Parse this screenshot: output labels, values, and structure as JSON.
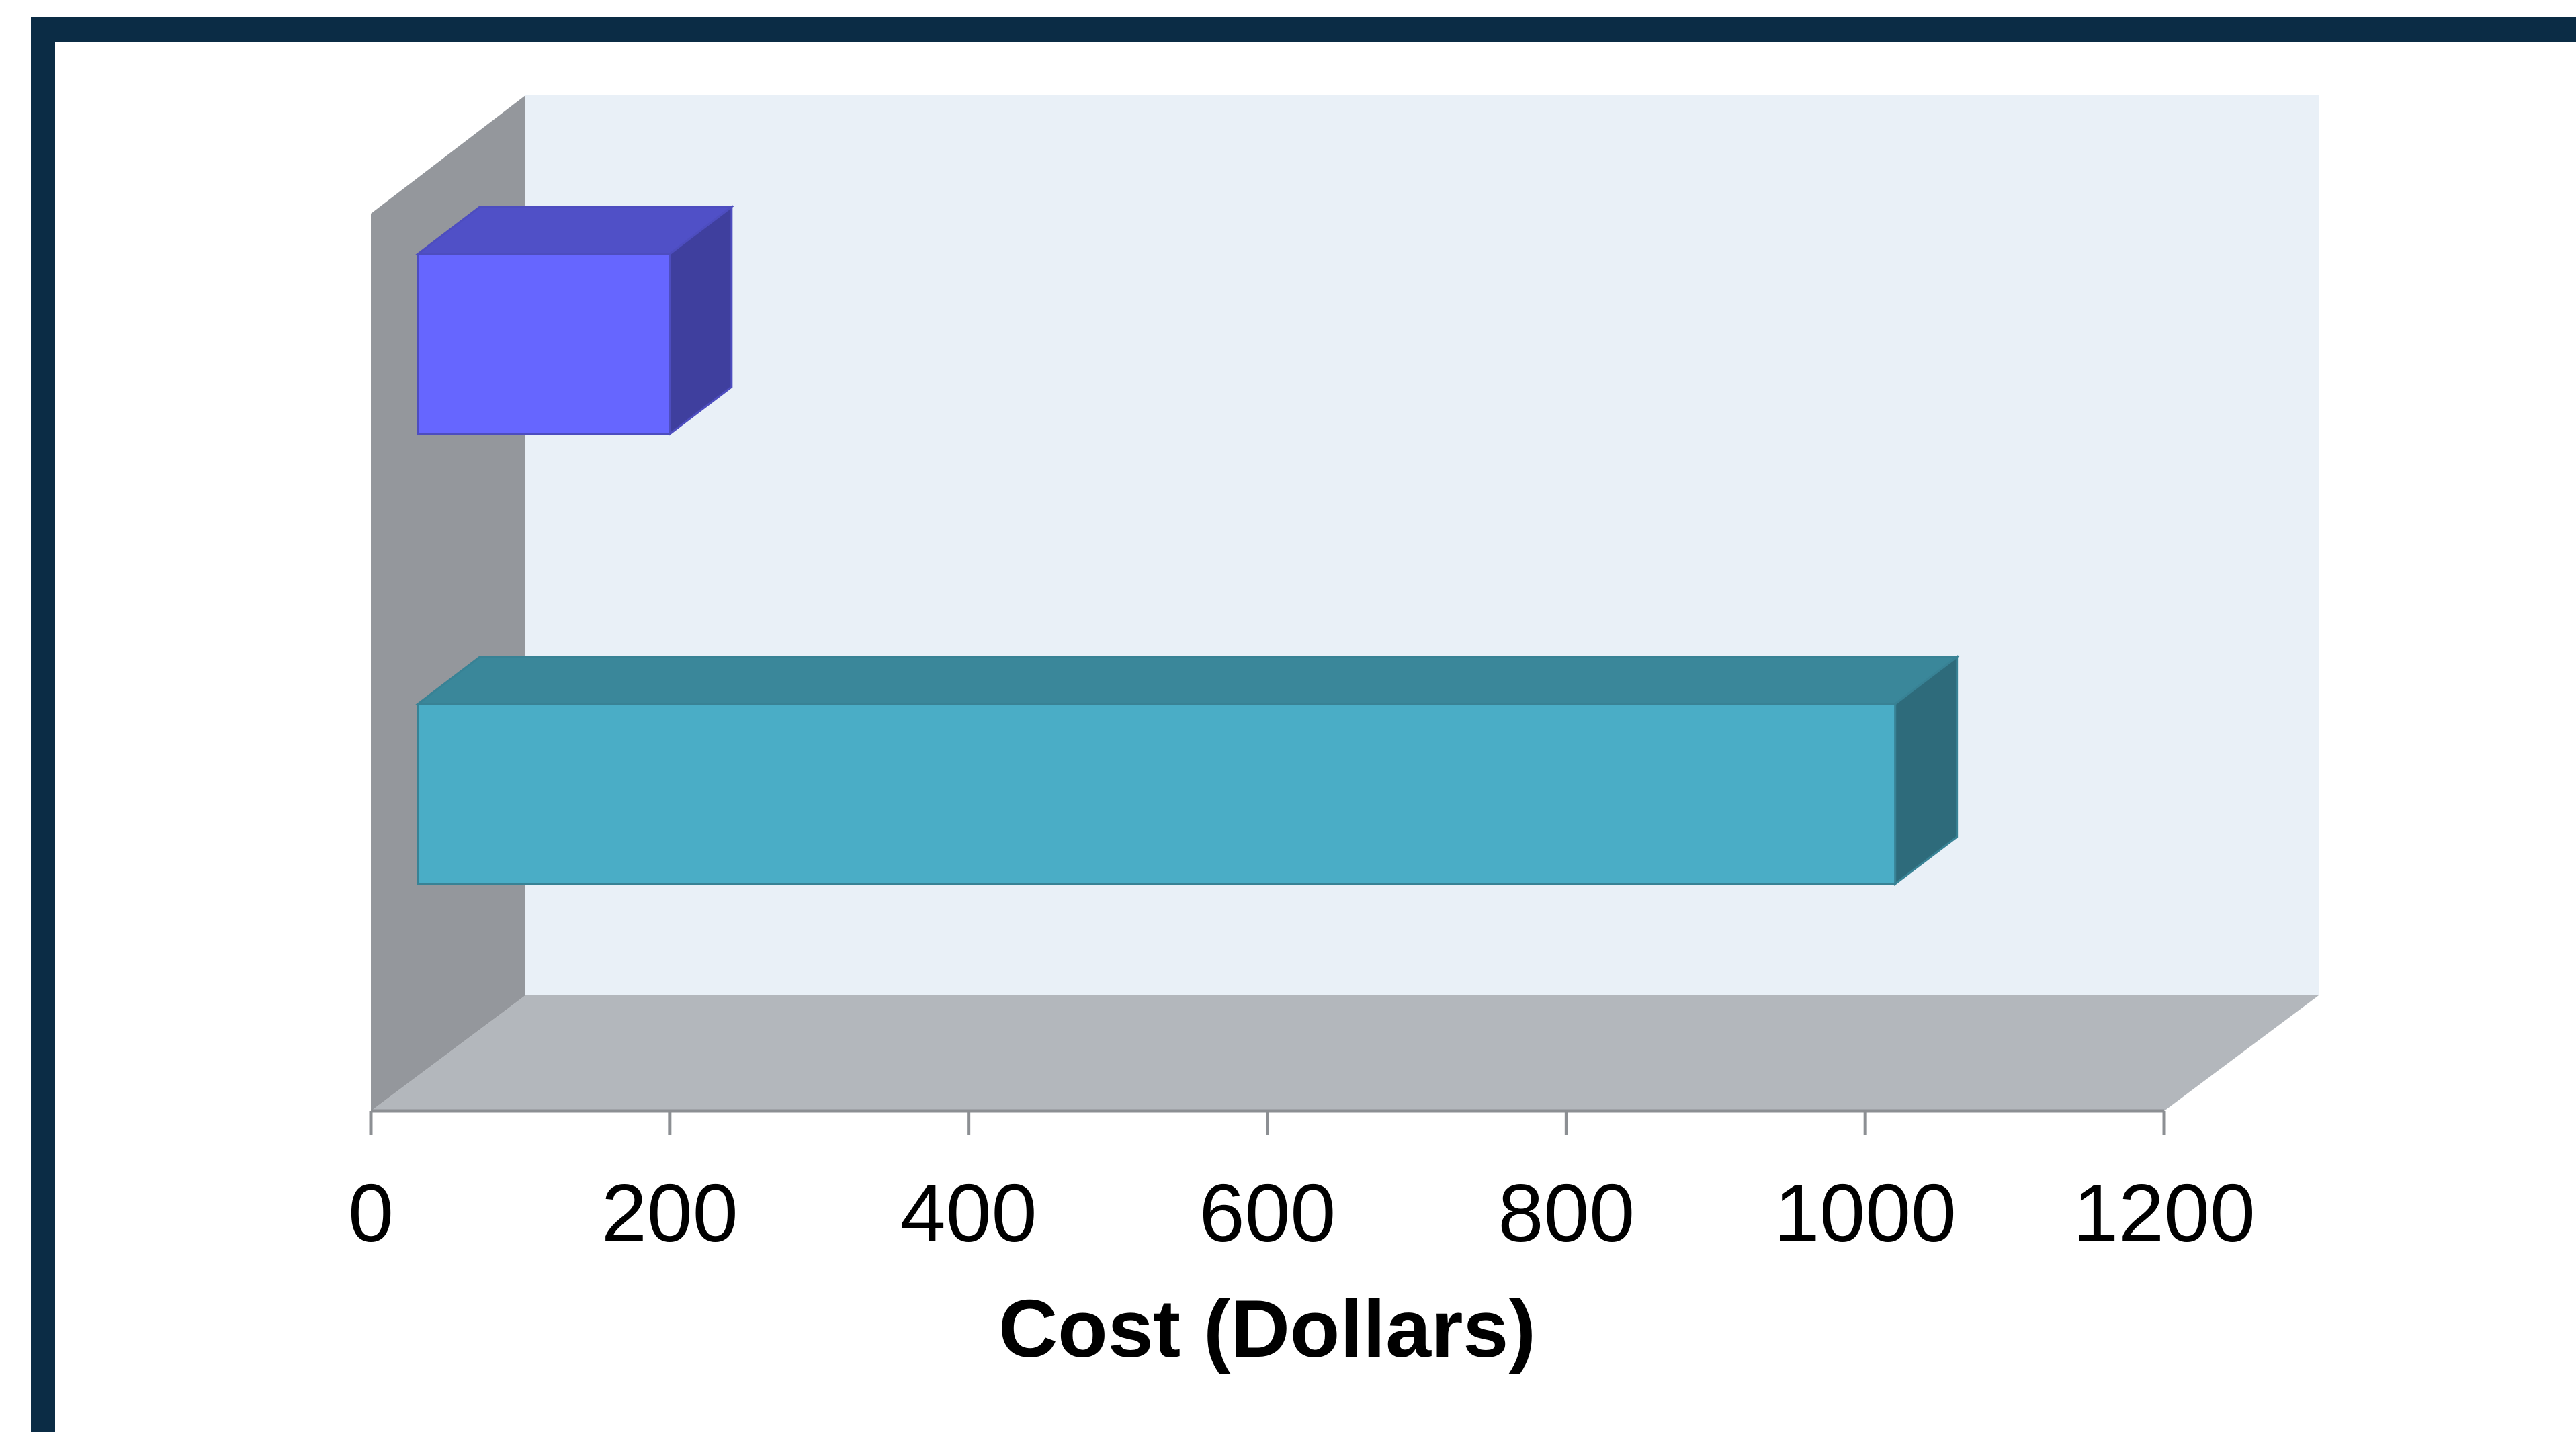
{
  "colors": {
    "frame": "#0b2c45",
    "back_wall": "#e9f0f7",
    "side_wall": "#94979c",
    "floor": "#b3b7bc",
    "series_1": "#6666ff",
    "series_2": "#4aadc6"
  },
  "chart_data": {
    "type": "bar",
    "orientation": "horizontal",
    "three_d": true,
    "categories": [
      "",
      ""
    ],
    "series": [
      {
        "values": [
          200,
          1020
        ]
      }
    ],
    "bar_colors": [
      "#6666ff",
      "#4aadc6"
    ],
    "title": "",
    "xlabel": "Cost (Dollars)",
    "ylabel": "",
    "xlim": [
      0,
      1200
    ],
    "xticks": [
      "0",
      "200",
      "400",
      "600",
      "800",
      "1000",
      "1200"
    ],
    "grid": false,
    "legend": "none"
  }
}
